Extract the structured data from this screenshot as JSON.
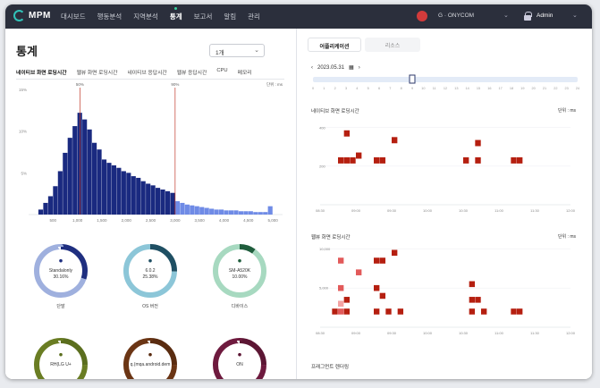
{
  "app": {
    "logo_text": "MPM"
  },
  "nav": {
    "items": [
      {
        "label": "대시보드",
        "active": false
      },
      {
        "label": "행동분석",
        "active": false
      },
      {
        "label": "지역분석",
        "active": false
      },
      {
        "label": "통계",
        "active": true
      },
      {
        "label": "보고서",
        "active": false
      },
      {
        "label": "알림",
        "active": false
      },
      {
        "label": "관리",
        "active": false
      }
    ]
  },
  "header": {
    "org_name": "ONYCOM",
    "org_prefix": "G ·",
    "user_name": "Admin"
  },
  "page": {
    "title": "통계",
    "period_select": "1개"
  },
  "tabs": [
    {
      "label": "네이티브 화면 로딩시간",
      "active": true
    },
    {
      "label": "웹뷰 화면 로딩시간",
      "active": false
    },
    {
      "label": "네이티브 응답시간",
      "active": false
    },
    {
      "label": "웹뷰 응답시간",
      "active": false
    },
    {
      "label": "CPU",
      "active": false
    },
    {
      "label": "메모리",
      "active": false
    }
  ],
  "histogram": {
    "marker_left_label": "50%",
    "marker_right_label": "90%",
    "unit_label": "단위 : ms",
    "y_ticks": [
      "15%",
      "10%",
      "5%"
    ],
    "x_ticks": [
      "500",
      "1,000",
      "1,500",
      "2,000",
      "2,500",
      "3,000",
      "3,500",
      "4,000",
      "4,500",
      "5,000"
    ]
  },
  "chart_data": [
    {
      "type": "bar",
      "title": "",
      "xlabel": "",
      "ylabel": "",
      "unit": "ms",
      "x_range": [
        0,
        5200
      ],
      "ylim": [
        0,
        15
      ],
      "bin_width": 100,
      "bins_start": [
        200,
        300,
        400,
        500,
        600,
        700,
        800,
        900,
        1000,
        1100,
        1200,
        1300,
        1400,
        1500,
        1600,
        1700,
        1800,
        1900,
        2000,
        2100,
        2200,
        2300,
        2400,
        2500,
        2600,
        2700,
        2800,
        2900,
        3000,
        3100,
        3200,
        3300,
        3400,
        3500,
        3600,
        3700,
        3800,
        3900,
        4000,
        4100,
        4200,
        4300,
        4400,
        4500,
        4600,
        4700,
        4800,
        4900
      ],
      "values": [
        0.6,
        1.4,
        2.2,
        3.4,
        5.2,
        7.4,
        9.2,
        10.6,
        12.2,
        11.4,
        10.2,
        8.6,
        7.8,
        6.6,
        6.2,
        5.9,
        5.6,
        5.2,
        5.0,
        4.6,
        4.4,
        4.0,
        3.7,
        3.5,
        3.2,
        3.0,
        2.8,
        2.6,
        1.6,
        1.4,
        1.2,
        1.1,
        1.0,
        0.9,
        0.8,
        0.7,
        0.6,
        0.6,
        0.5,
        0.5,
        0.5,
        0.4,
        0.4,
        0.4,
        0.3,
        0.3,
        0.3,
        1.0
      ],
      "markers": [
        {
          "label": "50%",
          "x": 1050
        },
        {
          "label": "90%",
          "x": 3000
        }
      ]
    },
    {
      "type": "pie",
      "title": "단말",
      "center_label": "Standalonly",
      "value_label": "30.16%",
      "values": [
        30.16,
        69.84
      ],
      "colors": [
        "#1f2f80",
        "#9fb0de"
      ]
    },
    {
      "type": "pie",
      "title": "OS 버전",
      "center_label": "6.0.2",
      "value_label": "25.38%",
      "values": [
        25.38,
        74.62
      ],
      "colors": [
        "#1f4f63",
        "#8cc6d8"
      ]
    },
    {
      "type": "pie",
      "title": "디바이스",
      "center_label": "SM-A520K",
      "value_label": "10.00%",
      "values": [
        10.0,
        90.0
      ],
      "colors": [
        "#1f5d3c",
        "#a7d9c0"
      ]
    },
    {
      "type": "pie",
      "title": "",
      "center_label": "RH(LG U+",
      "value_label": "",
      "values": [
        25,
        75
      ],
      "colors": [
        "#5b6e1e",
        "#6a7d23"
      ]
    },
    {
      "type": "pie",
      "title": "",
      "center_label": "q.(mqa.android.dem",
      "value_label": "",
      "values": [
        25,
        75
      ],
      "colors": [
        "#5a2c10",
        "#6b3514"
      ]
    },
    {
      "type": "pie",
      "title": "",
      "center_label": "ON",
      "value_label": "",
      "values": [
        25,
        75
      ],
      "colors": [
        "#5c1634",
        "#6e1a3e"
      ]
    },
    {
      "type": "heatmap",
      "title": "네이티브 화면 로딩시간",
      "unit_label": "단위 : ms",
      "y_ticks": [
        "400",
        "200"
      ],
      "x_ticks": [
        "08:30",
        "09:00",
        "09:30",
        "10:00",
        "10:30",
        "11:00",
        "11:30",
        "12:00"
      ],
      "cells": [
        {
          "t": "08:45",
          "v": 230,
          "level": 3
        },
        {
          "t": "08:50",
          "v": 230,
          "level": 3
        },
        {
          "t": "08:55",
          "v": 230,
          "level": 3
        },
        {
          "t": "08:50",
          "v": 370,
          "level": 3
        },
        {
          "t": "09:00",
          "v": 255,
          "level": 3
        },
        {
          "t": "09:15",
          "v": 230,
          "level": 3
        },
        {
          "t": "09:20",
          "v": 230,
          "level": 3
        },
        {
          "t": "09:30",
          "v": 335,
          "level": 3
        },
        {
          "t": "10:30",
          "v": 230,
          "level": 3
        },
        {
          "t": "10:40",
          "v": 320,
          "level": 3
        },
        {
          "t": "10:40",
          "v": 230,
          "level": 3
        },
        {
          "t": "11:10",
          "v": 230,
          "level": 3
        },
        {
          "t": "11:15",
          "v": 230,
          "level": 3
        }
      ]
    },
    {
      "type": "heatmap",
      "title": "웹뷰 화면 로딩시간",
      "unit_label": "단위 : ms",
      "y_ticks": [
        "10,000",
        "5,000"
      ],
      "x_ticks": [
        "08:30",
        "09:00",
        "09:30",
        "10:00",
        "10:30",
        "11:00",
        "11:30",
        "12:00"
      ],
      "cells": [
        {
          "t": "08:45",
          "v": 8500,
          "level": 2
        },
        {
          "t": "08:45",
          "v": 5000,
          "level": 2
        },
        {
          "t": "08:45",
          "v": 3000,
          "level": 1
        },
        {
          "t": "08:45",
          "v": 2000,
          "level": 2
        },
        {
          "t": "08:50",
          "v": 2000,
          "level": 3
        },
        {
          "t": "08:40",
          "v": 2000,
          "level": 3
        },
        {
          "t": "08:50",
          "v": 3500,
          "level": 3
        },
        {
          "t": "09:00",
          "v": 7000,
          "level": 2
        },
        {
          "t": "09:15",
          "v": 8500,
          "level": 3
        },
        {
          "t": "09:20",
          "v": 8500,
          "level": 3
        },
        {
          "t": "09:15",
          "v": 5000,
          "level": 3
        },
        {
          "t": "09:20",
          "v": 4000,
          "level": 3
        },
        {
          "t": "09:15",
          "v": 2000,
          "level": 3
        },
        {
          "t": "09:25",
          "v": 2000,
          "level": 3
        },
        {
          "t": "09:30",
          "v": 9500,
          "level": 3
        },
        {
          "t": "09:35",
          "v": 2000,
          "level": 3
        },
        {
          "t": "10:35",
          "v": 5500,
          "level": 3
        },
        {
          "t": "10:35",
          "v": 3500,
          "level": 3
        },
        {
          "t": "10:35",
          "v": 2000,
          "level": 3
        },
        {
          "t": "10:45",
          "v": 2000,
          "level": 3
        },
        {
          "t": "10:40",
          "v": 3500,
          "level": 3
        },
        {
          "t": "11:10",
          "v": 2000,
          "level": 3
        },
        {
          "t": "11:15",
          "v": 2000,
          "level": 3
        }
      ]
    }
  ],
  "right": {
    "tabs": [
      {
        "label": "어플리케이션",
        "active": true
      },
      {
        "label": "리소스",
        "active": false
      }
    ],
    "date_label": "2023.05.31",
    "slider_ticks": [
      "0",
      "1",
      "2",
      "3",
      "4",
      "5",
      "6",
      "7",
      "8",
      "9",
      "10",
      "11",
      "12",
      "13",
      "14",
      "15",
      "16",
      "17",
      "18",
      "19",
      "20",
      "21",
      "22",
      "23",
      "24"
    ],
    "slider_value": 9,
    "third_chart_title": "프래그먼트 렌더링"
  },
  "colors": {
    "nav_bg": "#2b2f3c",
    "hist_main": "#1a2a80",
    "hist_tail": "#6f8be6",
    "marker_red": "#c0392b",
    "heat_1": "#f4a3a3",
    "heat_2": "#e25a5a",
    "heat_3": "#b51f10"
  }
}
